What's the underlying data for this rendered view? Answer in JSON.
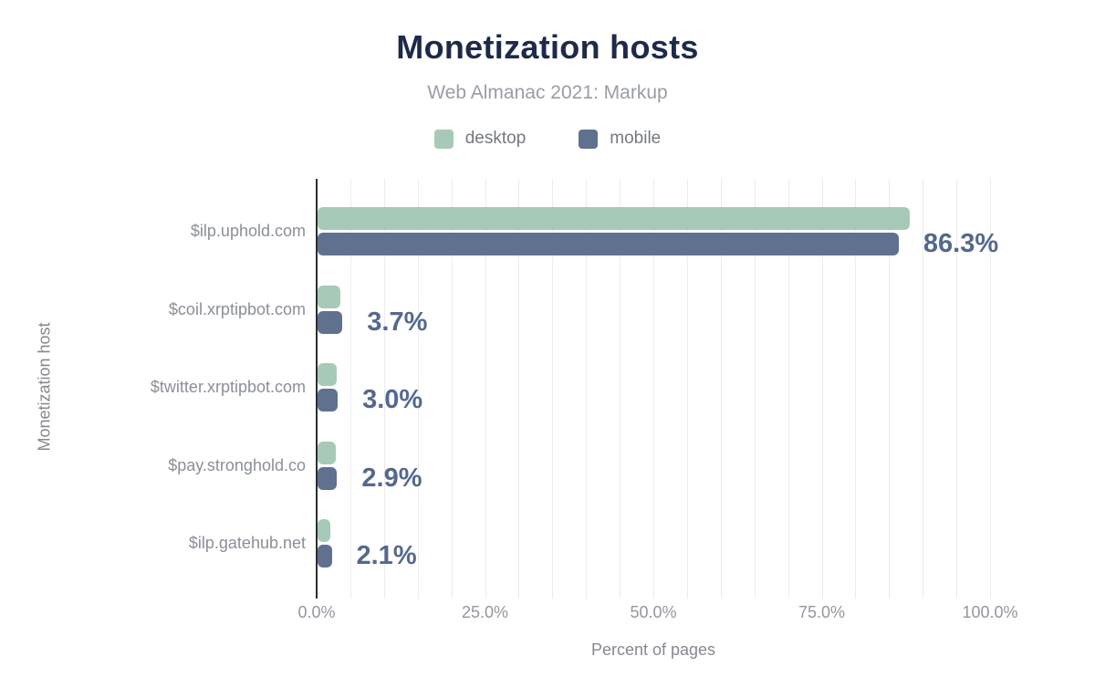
{
  "chart_data": {
    "type": "bar",
    "orientation": "horizontal",
    "title": "Monetization hosts",
    "subtitle": "Web Almanac 2021: Markup",
    "xlabel": "Percent of pages",
    "ylabel": "Monetization host",
    "categories": [
      "$ilp.uphold.com",
      "$coil.xrptipbot.com",
      "$twitter.xrptipbot.com",
      "$pay.stronghold.co",
      "$ilp.gatehub.net"
    ],
    "series": [
      {
        "name": "desktop",
        "color": "#a7c9b8",
        "values": [
          88.0,
          3.4,
          2.9,
          2.7,
          1.9
        ]
      },
      {
        "name": "mobile",
        "color": "#5f718e",
        "values": [
          86.3,
          3.7,
          3.0,
          2.9,
          2.1
        ]
      }
    ],
    "bar_labels": [
      "86.3%",
      "3.7%",
      "3.0%",
      "2.9%",
      "2.1%"
    ],
    "bar_labels_series": "mobile",
    "xlim": [
      0,
      107.5
    ],
    "xticks": {
      "values": [
        0,
        25,
        50,
        75,
        100
      ],
      "labels": [
        "0.0%",
        "25.0%",
        "50.0%",
        "75.0%",
        "100.0%"
      ]
    },
    "gridlines": {
      "every": 5,
      "max": 100,
      "color": "#ececec",
      "on": true
    },
    "legend": {
      "position": "top",
      "items": [
        {
          "label": "desktop",
          "color": "#a7c9b8"
        },
        {
          "label": "mobile",
          "color": "#5f718e"
        }
      ]
    },
    "colors": {
      "title": "#1d2a49",
      "subtitle": "#999da5",
      "axis_line": "#2e2e2e",
      "tick_label": "#94979e",
      "category_label": "#8b8f98",
      "data_label": "#55688e",
      "axis_title": "#85888f",
      "background": "#ffffff"
    }
  }
}
